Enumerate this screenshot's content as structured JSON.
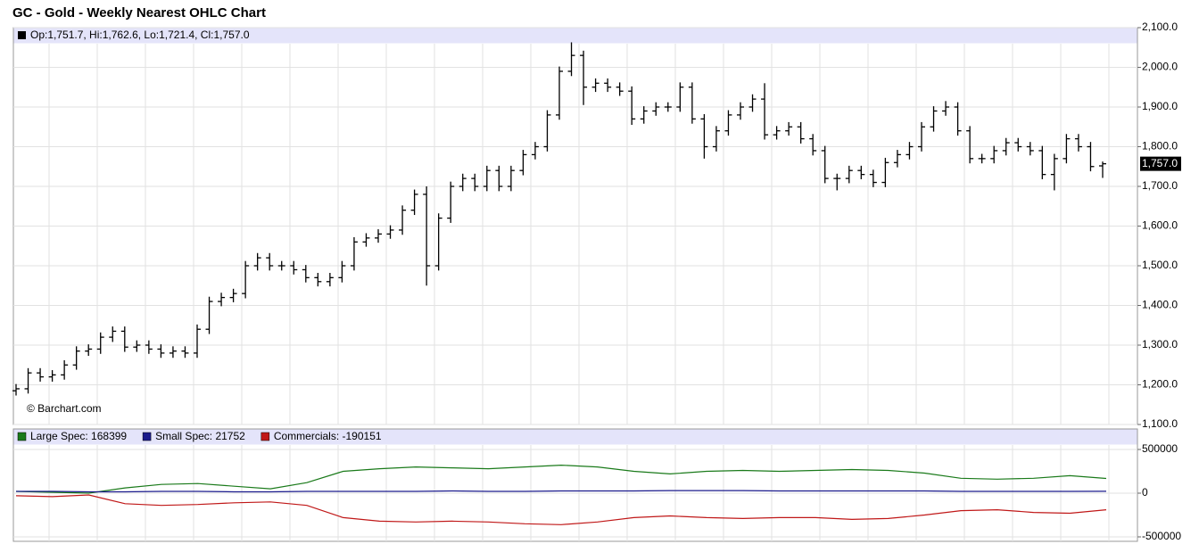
{
  "chart_data": [
    {
      "type": "ohlc",
      "title": "GC - Gold - Weekly Nearest OHLC Chart",
      "ohlc_label": "Op:1,751.7, Hi:1,762.6, Lo:1,721.4, Cl:1,757.0",
      "last_label": "1,757.0",
      "watermark": "© Barchart.com",
      "color": "#000000",
      "grid": true,
      "ylim": [
        1100,
        2100
      ],
      "yticks": [
        {
          "value": 1100,
          "label": "1,100.0"
        },
        {
          "value": 1200,
          "label": "1,200.0"
        },
        {
          "value": 1300,
          "label": "1,300.0"
        },
        {
          "value": 1400,
          "label": "1,400.0"
        },
        {
          "value": 1500,
          "label": "1,500.0"
        },
        {
          "value": 1600,
          "label": "1,600.0"
        },
        {
          "value": 1700,
          "label": "1,700.0"
        },
        {
          "value": 1800,
          "label": "1,800.0"
        },
        {
          "value": 1900,
          "label": "1,900.0"
        },
        {
          "value": 2000,
          "label": "2,000.0"
        },
        {
          "value": 2100,
          "label": "2,100.0"
        }
      ],
      "open": [
        1185,
        1190,
        1230,
        1220,
        1225,
        1250,
        1285,
        1290,
        1320,
        1335,
        1295,
        1300,
        1290,
        1280,
        1285,
        1280,
        1340,
        1410,
        1420,
        1430,
        1500,
        1520,
        1500,
        1500,
        1490,
        1470,
        1460,
        1470,
        1500,
        1560,
        1570,
        1580,
        1590,
        1640,
        1680,
        1500,
        1620,
        1700,
        1720,
        1700,
        1740,
        1700,
        1740,
        1780,
        1800,
        1880,
        1990,
        2030,
        1950,
        1960,
        1950,
        1940,
        1870,
        1890,
        1900,
        1900,
        1950,
        1870,
        1800,
        1840,
        1880,
        1900,
        1920,
        1830,
        1840,
        1850,
        1820,
        1790,
        1720,
        1720,
        1740,
        1730,
        1710,
        1760,
        1780,
        1800,
        1850,
        1890,
        1900,
        1840,
        1770,
        1770,
        1790,
        1810,
        1800,
        1790,
        1730,
        1770,
        1820,
        1800,
        1751.7
      ],
      "high": [
        1202,
        1242,
        1242,
        1237,
        1262,
        1297,
        1302,
        1332,
        1347,
        1347,
        1312,
        1312,
        1302,
        1297,
        1297,
        1352,
        1422,
        1432,
        1442,
        1512,
        1532,
        1532,
        1512,
        1512,
        1502,
        1482,
        1482,
        1512,
        1572,
        1582,
        1592,
        1602,
        1652,
        1692,
        1700,
        1632,
        1712,
        1732,
        1732,
        1752,
        1752,
        1752,
        1792,
        1812,
        1892,
        2002,
        2063,
        2042,
        1972,
        1972,
        1962,
        1952,
        1902,
        1912,
        1912,
        1962,
        1962,
        1882,
        1852,
        1892,
        1912,
        1932,
        1960,
        1852,
        1862,
        1862,
        1832,
        1802,
        1732,
        1752,
        1752,
        1742,
        1772,
        1792,
        1812,
        1862,
        1902,
        1915,
        1912,
        1852,
        1782,
        1802,
        1822,
        1822,
        1812,
        1802,
        1782,
        1832,
        1832,
        1812,
        1762.6
      ],
      "low": [
        1173,
        1178,
        1208,
        1208,
        1213,
        1238,
        1273,
        1278,
        1308,
        1283,
        1283,
        1278,
        1268,
        1268,
        1268,
        1268,
        1328,
        1398,
        1408,
        1418,
        1488,
        1488,
        1488,
        1478,
        1458,
        1448,
        1448,
        1458,
        1488,
        1548,
        1558,
        1568,
        1578,
        1628,
        1450,
        1488,
        1608,
        1688,
        1688,
        1688,
        1688,
        1688,
        1728,
        1768,
        1788,
        1868,
        1978,
        1905,
        1938,
        1938,
        1928,
        1855,
        1858,
        1878,
        1888,
        1888,
        1858,
        1770,
        1788,
        1828,
        1868,
        1888,
        1818,
        1818,
        1828,
        1808,
        1778,
        1708,
        1690,
        1708,
        1718,
        1698,
        1698,
        1748,
        1768,
        1788,
        1838,
        1878,
        1828,
        1758,
        1758,
        1758,
        1778,
        1788,
        1778,
        1718,
        1690,
        1758,
        1788,
        1738,
        1721.4
      ],
      "close": [
        1190,
        1230,
        1220,
        1225,
        1250,
        1285,
        1290,
        1320,
        1335,
        1295,
        1300,
        1290,
        1280,
        1285,
        1280,
        1340,
        1410,
        1420,
        1430,
        1500,
        1520,
        1500,
        1500,
        1490,
        1470,
        1460,
        1470,
        1500,
        1560,
        1570,
        1580,
        1590,
        1640,
        1680,
        1500,
        1620,
        1700,
        1720,
        1700,
        1740,
        1700,
        1740,
        1780,
        1800,
        1880,
        1990,
        2030,
        1950,
        1960,
        1950,
        1940,
        1870,
        1890,
        1900,
        1900,
        1950,
        1870,
        1800,
        1840,
        1880,
        1900,
        1920,
        1830,
        1840,
        1850,
        1820,
        1790,
        1720,
        1720,
        1740,
        1730,
        1710,
        1760,
        1780,
        1800,
        1850,
        1890,
        1900,
        1840,
        1770,
        1770,
        1790,
        1810,
        1800,
        1790,
        1730,
        1770,
        1820,
        1800,
        1750,
        1757
      ]
    },
    {
      "type": "line",
      "grid": true,
      "ylim": [
        -500000,
        500000
      ],
      "yticks": [
        -500000,
        0,
        500000
      ],
      "series": [
        {
          "name": "Large Spec: 168399",
          "color": "#1a7a1a",
          "values": [
            20000,
            10000,
            0,
            60000,
            100000,
            110000,
            80000,
            50000,
            120000,
            250000,
            280000,
            300000,
            290000,
            280000,
            300000,
            320000,
            300000,
            250000,
            220000,
            250000,
            260000,
            250000,
            260000,
            270000,
            260000,
            230000,
            170000,
            160000,
            170000,
            200000,
            168399
          ]
        },
        {
          "name": "Small Spec: 21752",
          "color": "#1a1a8c",
          "values": [
            20000,
            20000,
            15000,
            15000,
            20000,
            20000,
            15000,
            15000,
            20000,
            20000,
            20000,
            20000,
            25000,
            20000,
            20000,
            25000,
            25000,
            25000,
            30000,
            30000,
            30000,
            25000,
            25000,
            25000,
            25000,
            25000,
            20000,
            20000,
            20000,
            20000,
            21752
          ]
        },
        {
          "name": "Commercials: -190151",
          "color": "#c01818",
          "values": [
            -30000,
            -40000,
            -20000,
            -120000,
            -140000,
            -130000,
            -110000,
            -100000,
            -140000,
            -280000,
            -320000,
            -330000,
            -320000,
            -330000,
            -350000,
            -360000,
            -330000,
            -280000,
            -260000,
            -280000,
            -290000,
            -280000,
            -280000,
            -300000,
            -290000,
            -250000,
            -200000,
            -190000,
            -220000,
            -230000,
            -190151
          ]
        }
      ]
    }
  ]
}
